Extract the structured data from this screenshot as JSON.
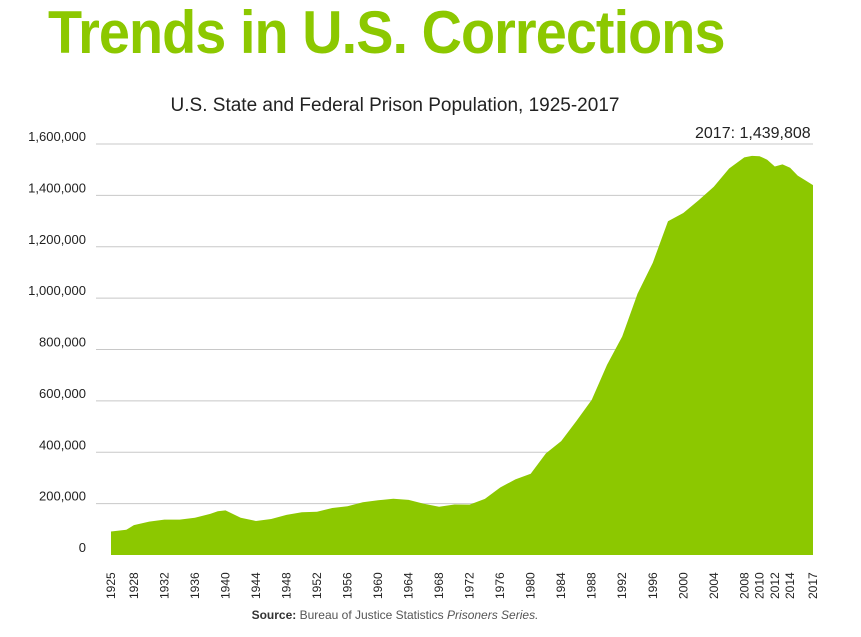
{
  "headline": "Trends in U.S. Corrections",
  "source": {
    "label": "Source:",
    "text": "Bureau of Justice Statistics",
    "italic": "Prisoners Series."
  },
  "colors": {
    "headline": "#8cc800",
    "area": "#8cc800",
    "grid": "#c8c8c8",
    "text": "#222222"
  },
  "chart_data": {
    "type": "area",
    "title": "U.S. State and Federal Prison Population, 1925-2017",
    "xlabel": "",
    "ylabel": "",
    "xlim": [
      1925,
      2017
    ],
    "ylim": [
      0,
      1600000
    ],
    "yticks": [
      0,
      200000,
      400000,
      600000,
      800000,
      1000000,
      1200000,
      1400000,
      1600000
    ],
    "ytick_labels": [
      "0",
      "200,000",
      "400,000",
      "600,000",
      "800,000",
      "1,000,000",
      "1,200,000",
      "1,400,000",
      "1,600,000"
    ],
    "xtick_labels": [
      "1925",
      "1928",
      "1932",
      "1936",
      "1940",
      "1944",
      "1948",
      "1952",
      "1956",
      "1960",
      "1964",
      "1968",
      "1972",
      "1976",
      "1980",
      "1984",
      "1988",
      "1992",
      "1996",
      "2000",
      "2004",
      "2008",
      "2010",
      "2012",
      "2014",
      "2017"
    ],
    "grid": true,
    "annotation": "2017: 1,439,808",
    "series": [
      {
        "name": "Prison population",
        "x": [
          1925,
          1927,
          1928,
          1930,
          1932,
          1934,
          1936,
          1938,
          1939,
          1940,
          1942,
          1944,
          1946,
          1948,
          1950,
          1952,
          1954,
          1956,
          1958,
          1960,
          1962,
          1964,
          1966,
          1968,
          1970,
          1972,
          1974,
          1976,
          1978,
          1980,
          1982,
          1984,
          1986,
          1988,
          1990,
          1992,
          1994,
          1996,
          1998,
          2000,
          2002,
          2004,
          2006,
          2008,
          2009,
          2010,
          2011,
          2012,
          2013,
          2014,
          2015,
          2016,
          2017
        ],
        "values": [
          91669,
          98000,
          116390,
          130000,
          137997,
          138000,
          145038,
          160000,
          170000,
          173706,
          145000,
          132456,
          140000,
          155977,
          166123,
          168233,
          182901,
          189565,
          205643,
          212953,
          218830,
          214336,
          199654,
          187914,
          196429,
          196092,
          218466,
          262833,
          294396,
          315974,
          395516,
          443398,
          522084,
          603732,
          739980,
          850566,
          1016691,
          1137722,
          1299000,
          1331278,
          1380370,
          1433728,
          1504660,
          1547742,
          1553574,
          1552669,
          1538847,
          1512430,
          1520403,
          1507781,
          1476847,
          1458173,
          1439808
        ]
      }
    ]
  }
}
